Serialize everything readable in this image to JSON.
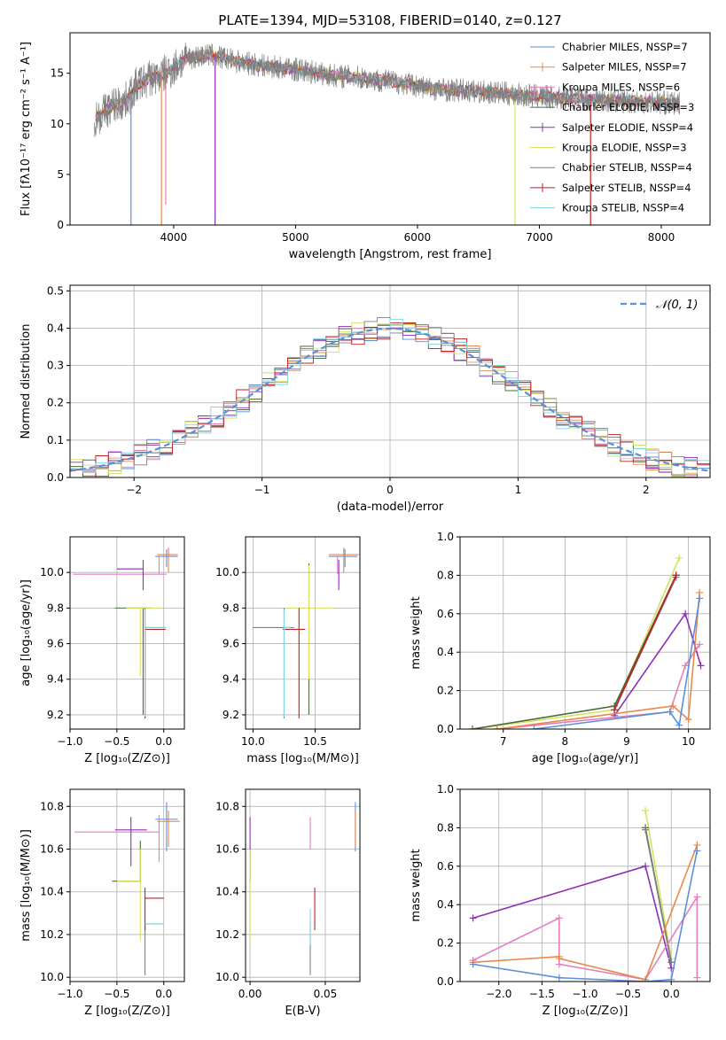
{
  "title": "PLATE=1394, MJD=53108, FIBERID=0140, z=0.127",
  "colors": {
    "chabrier_miles": "#5b8fd9",
    "salpeter_miles": "#e8884a",
    "kroupa_miles": "#e47fbf",
    "chabrier_elodie": "#4a6b3a",
    "salpeter_elodie": "#8e2eb5",
    "kroupa_elodie": "#d8e060",
    "chabrier_stelib": "#7f7f7f",
    "salpeter_stelib": "#c41e1e",
    "kroupa_stelib": "#7fd6e0",
    "normal_curve": "#5b8fd9",
    "grid": "#b0b0b0"
  },
  "chart_data": [
    {
      "id": "spectrum",
      "type": "line",
      "xlabel": "wavelength [Angstrom, rest frame]",
      "ylabel": "Flux [fλ10⁻¹⁷ erg cm⁻² s⁻¹ A⁻¹]",
      "xlim": [
        3150,
        8400
      ],
      "ylim": [
        0,
        19
      ],
      "xticks": [
        "4000",
        "5000",
        "6000",
        "7000",
        "8000"
      ],
      "yticks": [
        "0",
        "5",
        "10",
        "15"
      ],
      "grid": false,
      "legend_position": "top-right",
      "legend": [
        "Chabrier MILES, NSSP=7",
        "Salpeter MILES, NSSP=7",
        "Kroupa MILES, NSSP=6",
        "Chabrier ELODIE, NSSP=3",
        "Salpeter ELODIE, NSSP=4",
        "Kroupa ELODIE, NSSP=3",
        "Chabrier STELIB, NSSP=4",
        "Salpeter STELIB, NSSP=4",
        "Kroupa STELIB, NSSP=4"
      ],
      "continuum": {
        "x": [
          3350,
          3500,
          3600,
          3700,
          3800,
          3900,
          4000,
          4100,
          4300,
          4500,
          4700,
          4900,
          5100,
          5300,
          5500,
          5700,
          5900,
          6100,
          6300,
          6500,
          6700,
          6900,
          7100,
          7300,
          7500,
          7700,
          7900,
          8100
        ],
        "y": [
          10.5,
          11.8,
          12.2,
          13.8,
          14.5,
          14.8,
          15.5,
          16.5,
          16.8,
          16.2,
          15.8,
          15.5,
          15.2,
          14.8,
          14.6,
          14.3,
          14.0,
          13.5,
          13.3,
          13.2,
          13.0,
          12.8,
          12.6,
          12.5,
          12.4,
          12.2,
          12.2,
          12.0
        ]
      },
      "data_noise": 1.2,
      "absorption_lines": [
        {
          "x": 3650,
          "y": 0
        },
        {
          "x": 3900,
          "y": 0
        },
        {
          "x": 3935,
          "y": 2
        },
        {
          "x": 4340,
          "y": 0
        },
        {
          "x": 6800,
          "y": 0
        },
        {
          "x": 7420,
          "y": 0
        }
      ]
    },
    {
      "id": "residuals",
      "type": "histogram",
      "xlabel": "(data-model)/error",
      "ylabel": "Normed distribution",
      "xlim": [
        -2.5,
        2.5
      ],
      "ylim": [
        0,
        0.515
      ],
      "xticks": [
        "−2",
        "−1",
        "0",
        "1",
        "2"
      ],
      "yticks": [
        "0.0",
        "0.1",
        "0.2",
        "0.3",
        "0.4",
        "0.5"
      ],
      "grid": true,
      "legend_position": "top-right",
      "legend": [
        "𝒩(0, 1)"
      ],
      "bin_width": 0.1,
      "bin_start": -2.5,
      "series_colors": [
        "#5b8fd9",
        "#e8884a",
        "#e47fbf",
        "#4a6b3a",
        "#8e2eb5",
        "#d8e060",
        "#7f7f7f",
        "#c41e1e",
        "#7fd6e0"
      ]
    },
    {
      "id": "age-vs-Z",
      "type": "errorbar",
      "xlabel": "Z [log₁₀(Z/Z⊙)]",
      "ylabel": "age  [log₁₀(age/yr)]",
      "xlim": [
        -1.0,
        0.22
      ],
      "ylim": [
        9.12,
        10.2
      ],
      "xticks": [
        "−1.0",
        "−0.5",
        "0.0"
      ],
      "yticks": [
        "9.2",
        "9.4",
        "9.6",
        "9.8",
        "10.0"
      ],
      "grid": true,
      "points": [
        {
          "x": 0.03,
          "xerr": [
            0.12,
            0.12
          ],
          "y": 10.09,
          "yerr": [
            0.06,
            0.04
          ],
          "color": "#5b8fd9"
        },
        {
          "x": 0.05,
          "xerr": [
            0.12,
            0.1
          ],
          "y": 10.1,
          "yerr": [
            0.1,
            0.04
          ],
          "color": "#e8884a"
        },
        {
          "x": -0.05,
          "xerr": [
            0.92,
            0.08
          ],
          "y": 9.99,
          "yerr": [
            0.0,
            0.1
          ],
          "color": "#e47fbf"
        },
        {
          "x": -0.22,
          "xerr": [
            0.3,
            0.08
          ],
          "y": 9.8,
          "yerr": [
            0.6,
            0.0
          ],
          "color": "#4a6b3a"
        },
        {
          "x": -0.22,
          "xerr": [
            0.28,
            0.0
          ],
          "y": 10.02,
          "yerr": [
            0.12,
            0.05
          ],
          "color": "#8e2eb5"
        },
        {
          "x": -0.25,
          "xerr": [
            0.15,
            0.23
          ],
          "y": 9.8,
          "yerr": [
            0.38,
            0.0
          ],
          "color": "#d8e060"
        },
        {
          "x": -0.2,
          "xerr": [
            0.0,
            0.22
          ],
          "y": 9.69,
          "yerr": [
            0.51,
            0.11
          ],
          "color": "#7f7f7f"
        },
        {
          "x": -0.2,
          "xerr": [
            0.0,
            0.22
          ],
          "y": 9.68,
          "yerr": [
            0.5,
            0.0
          ],
          "color": "#c41e1e"
        },
        {
          "x": -0.2,
          "xerr": [
            0.0,
            0.22
          ],
          "y": 9.69,
          "yerr": [
            0.5,
            0.1
          ],
          "color": "#7fd6e0"
        }
      ]
    },
    {
      "id": "age-vs-mass",
      "type": "errorbar",
      "xlabel": "mass [log₁₀(M/M⊙)]",
      "ylabel": "",
      "xlim": [
        9.94,
        10.86
      ],
      "ylim": [
        9.12,
        10.2
      ],
      "xticks": [
        "10.0",
        "10.5"
      ],
      "yticks": [
        "9.2",
        "9.4",
        "9.6",
        "9.8",
        "10.0"
      ],
      "grid": true,
      "points": [
        {
          "x": 10.74,
          "xerr": [
            0.13,
            0.1
          ],
          "y": 10.09,
          "yerr": [
            0.06,
            0.04
          ],
          "color": "#5b8fd9"
        },
        {
          "x": 10.73,
          "xerr": [
            0.12,
            0.12
          ],
          "y": 10.1,
          "yerr": [
            0.1,
            0.04
          ],
          "color": "#e8884a"
        },
        {
          "x": 10.68,
          "xerr": [
            0.0,
            0.0
          ],
          "y": 9.99,
          "yerr": [
            0.0,
            0.1
          ],
          "color": "#e47fbf"
        },
        {
          "x": 10.45,
          "xerr": [
            0.0,
            0.0
          ],
          "y": 9.8,
          "yerr": [
            0.6,
            0.25
          ],
          "color": "#4a6b3a"
        },
        {
          "x": 10.69,
          "xerr": [
            0.0,
            0.0
          ],
          "y": 10.02,
          "yerr": [
            0.12,
            0.05
          ],
          "color": "#8e2eb5"
        },
        {
          "x": 10.45,
          "xerr": [
            0.18,
            0.2
          ],
          "y": 9.8,
          "yerr": [
            0.4,
            0.24
          ],
          "color": "#d8e060"
        },
        {
          "x": 10.25,
          "xerr": [
            0.25,
            0.08
          ],
          "y": 9.69,
          "yerr": [
            0.51,
            0.11
          ],
          "color": "#7f7f7f"
        },
        {
          "x": 10.37,
          "xerr": [
            0.13,
            0.05
          ],
          "y": 9.68,
          "yerr": [
            0.5,
            0.12
          ],
          "color": "#c41e1e"
        },
        {
          "x": 10.25,
          "xerr": [
            0.0,
            0.05
          ],
          "y": 9.69,
          "yerr": [
            0.5,
            0.1
          ],
          "color": "#7fd6e0"
        }
      ]
    },
    {
      "id": "mass-weight-vs-age",
      "type": "line",
      "xlabel": "age  [log₁₀(age/yr)]",
      "ylabel": "mass weight",
      "xlim": [
        6.3,
        10.35
      ],
      "ylim": [
        0,
        1.0
      ],
      "xticks": [
        "7",
        "8",
        "9",
        "10"
      ],
      "yticks": [
        "0.0",
        "0.2",
        "0.4",
        "0.6",
        "0.8",
        "1.0"
      ],
      "grid": true,
      "series": [
        {
          "color": "#d8e060",
          "x": [
            6.5,
            8.8,
            9.85
          ],
          "y": [
            0.0,
            0.1,
            0.89
          ]
        },
        {
          "color": "#4a6b3a",
          "x": [
            6.5,
            8.8,
            9.8
          ],
          "y": [
            0.0,
            0.12,
            0.8
          ]
        },
        {
          "color": "#7f7f7f",
          "x": [
            8.8,
            9.8
          ],
          "y": [
            0.1,
            0.79
          ]
        },
        {
          "color": "#8e2eb5",
          "x": [
            8.8,
            9.95,
            10.2
          ],
          "y": [
            0.07,
            0.6,
            0.33
          ]
        },
        {
          "color": "#e47fbf",
          "x": [
            6.9,
            9.7,
            9.95,
            10.18
          ],
          "y": [
            0.0,
            0.09,
            0.33,
            0.44
          ]
        },
        {
          "color": "#e8884a",
          "x": [
            6.9,
            9.75,
            10.0,
            10.18
          ],
          "y": [
            0.0,
            0.12,
            0.05,
            0.71
          ]
        },
        {
          "color": "#5b8fd9",
          "x": [
            7.5,
            9.7,
            9.85,
            10.18
          ],
          "y": [
            0.0,
            0.09,
            0.02,
            0.68
          ]
        },
        {
          "color": "#c41e1e",
          "x": [
            8.8,
            9.8
          ],
          "y": [
            0.1,
            0.8
          ]
        }
      ]
    },
    {
      "id": "mass-vs-Z",
      "type": "errorbar",
      "xlabel": "Z [log₁₀(Z/Z⊙)]",
      "ylabel": "mass [log₁₀(M/M⊙)]",
      "xlim": [
        -1.0,
        0.22
      ],
      "ylim": [
        9.98,
        10.88
      ],
      "xticks": [
        "−1.0",
        "−0.5",
        "0.0"
      ],
      "yticks": [
        "10.0",
        "10.2",
        "10.4",
        "10.6",
        "10.8"
      ],
      "grid": true,
      "points": [
        {
          "x": 0.03,
          "xerr": [
            0.12,
            0.12
          ],
          "y": 10.74,
          "yerr": [
            0.15,
            0.08
          ],
          "color": "#5b8fd9"
        },
        {
          "x": 0.05,
          "xerr": [
            0.12,
            0.12
          ],
          "y": 10.73,
          "yerr": [
            0.12,
            0.05
          ],
          "color": "#e8884a"
        },
        {
          "x": -0.05,
          "xerr": [
            0.9,
            0.0
          ],
          "y": 10.68,
          "yerr": [
            0.14,
            0.08
          ],
          "color": "#e47fbf"
        },
        {
          "x": -0.25,
          "xerr": [
            0.3,
            0.0
          ],
          "y": 10.45,
          "yerr": [
            0.0,
            0.19
          ],
          "color": "#4a6b3a"
        },
        {
          "x": -0.35,
          "xerr": [
            0.17,
            0.17
          ],
          "y": 10.69,
          "yerr": [
            0.17,
            0.06
          ],
          "color": "#8e2eb5"
        },
        {
          "x": -0.25,
          "xerr": [
            0.25,
            0.0
          ],
          "y": 10.45,
          "yerr": [
            0.28,
            0.15
          ],
          "color": "#d8e060"
        },
        {
          "x": -0.2,
          "xerr": [
            0.0,
            0.2
          ],
          "y": 10.25,
          "yerr": [
            0.24,
            0.0
          ],
          "color": "#7f7f7f"
        },
        {
          "x": -0.2,
          "xerr": [
            0.0,
            0.2
          ],
          "y": 10.37,
          "yerr": [
            0.15,
            0.05
          ],
          "color": "#c41e1e"
        },
        {
          "x": -0.2,
          "xerr": [
            0.0,
            0.2
          ],
          "y": 10.25,
          "yerr": [
            0.0,
            0.0
          ],
          "color": "#7fd6e0"
        }
      ]
    },
    {
      "id": "mass-vs-EBV",
      "type": "errorbar",
      "xlabel": "E(B-V)",
      "ylabel": "",
      "xlim": [
        -0.003,
        0.073
      ],
      "ylim": [
        9.98,
        10.88
      ],
      "xticks": [
        "0.00",
        "0.05"
      ],
      "yticks": [
        "10.0",
        "10.2",
        "10.4",
        "10.6",
        "10.8"
      ],
      "grid": true,
      "points": [
        {
          "x": 0.07,
          "xerr": [
            0,
            0
          ],
          "y": 10.74,
          "yerr": [
            0.15,
            0.08
          ],
          "color": "#5b8fd9"
        },
        {
          "x": 0.07,
          "xerr": [
            0,
            0
          ],
          "y": 10.73,
          "yerr": [
            0.12,
            0.05
          ],
          "color": "#e8884a"
        },
        {
          "x": 0.04,
          "xerr": [
            0,
            0
          ],
          "y": 10.68,
          "yerr": [
            0.08,
            0.07
          ],
          "color": "#e47fbf"
        },
        {
          "x": 0.0,
          "xerr": [
            0,
            0
          ],
          "y": 10.45,
          "yerr": [
            0.0,
            0.16
          ],
          "color": "#4a6b3a"
        },
        {
          "x": 0.0,
          "xerr": [
            0,
            0
          ],
          "y": 10.69,
          "yerr": [
            0.1,
            0.06
          ],
          "color": "#8e2eb5"
        },
        {
          "x": 0.0,
          "xerr": [
            0,
            0
          ],
          "y": 10.45,
          "yerr": [
            0.28,
            0.15
          ],
          "color": "#d8e060"
        },
        {
          "x": 0.04,
          "xerr": [
            0,
            0
          ],
          "y": 10.25,
          "yerr": [
            0.24,
            0.0
          ],
          "color": "#7f7f7f"
        },
        {
          "x": 0.043,
          "xerr": [
            0,
            0
          ],
          "y": 10.37,
          "yerr": [
            0.15,
            0.05
          ],
          "color": "#c41e1e"
        },
        {
          "x": 0.04,
          "xerr": [
            0,
            0
          ],
          "y": 10.25,
          "yerr": [
            0.1,
            0.07
          ],
          "color": "#7fd6e0"
        }
      ]
    },
    {
      "id": "mass-weight-vs-Z",
      "type": "line",
      "xlabel": "Z [log₁₀(Z/Z⊙)]",
      "ylabel": "mass weight",
      "xlim": [
        -2.45,
        0.45
      ],
      "ylim": [
        0,
        1.0
      ],
      "xticks": [
        "−2.0",
        "−1.5",
        "−1.0",
        "−0.5",
        "0.0"
      ],
      "yticks": [
        "0.0",
        "0.2",
        "0.4",
        "0.6",
        "0.8",
        "1.0"
      ],
      "grid": true,
      "series": [
        {
          "color": "#8e2eb5",
          "x": [
            -2.3,
            -0.3,
            0.0
          ],
          "y": [
            0.33,
            0.6,
            0.07
          ]
        },
        {
          "color": "#d8e060",
          "x": [
            -0.3,
            0.0
          ],
          "y": [
            0.89,
            0.12
          ]
        },
        {
          "color": "#4a6b3a",
          "x": [
            -0.3,
            0.0
          ],
          "y": [
            0.8,
            0.1
          ]
        },
        {
          "color": "#7f7f7f",
          "x": [
            -0.3,
            0.0
          ],
          "y": [
            0.79,
            0.1
          ]
        },
        {
          "color": "#e47fbf",
          "x": [
            -2.3,
            -1.3,
            -1.3,
            -0.3,
            0.3,
            0.3
          ],
          "y": [
            0.11,
            0.33,
            0.09,
            0.01,
            0.44,
            0.02
          ]
        },
        {
          "color": "#e8884a",
          "x": [
            -2.3,
            -1.3,
            -1.3,
            -0.3,
            0.3
          ],
          "y": [
            0.1,
            0.13,
            0.12,
            0.01,
            0.71
          ]
        },
        {
          "color": "#5b8fd9",
          "x": [
            -2.3,
            -1.3,
            -0.3,
            0.0,
            0.3
          ],
          "y": [
            0.09,
            0.02,
            0.0,
            0.01,
            0.68
          ]
        }
      ]
    }
  ]
}
